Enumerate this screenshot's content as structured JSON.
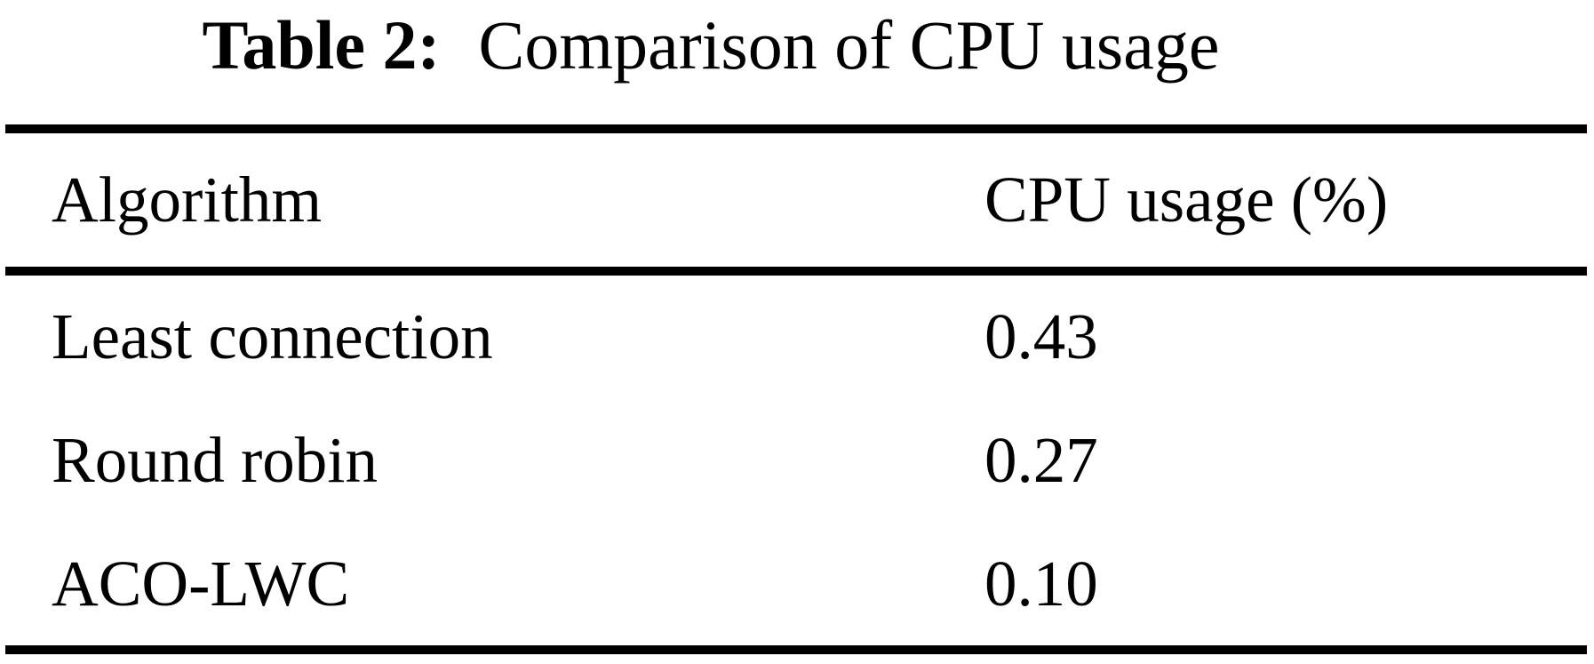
{
  "figure": {
    "caption_label": "Table 2:",
    "caption_text": "Comparison of CPU usage"
  },
  "table": {
    "columns": [
      "Algorithm",
      "CPU usage (%)"
    ],
    "rows": [
      {
        "algorithm": "Least connection",
        "cpu_usage": "0.43"
      },
      {
        "algorithm": "Round robin",
        "cpu_usage": "0.27"
      },
      {
        "algorithm": "ACO-LWC",
        "cpu_usage": "0.10"
      }
    ]
  },
  "colors": {
    "background": "#ffffff",
    "text": "#000000",
    "rule": "#000000"
  }
}
